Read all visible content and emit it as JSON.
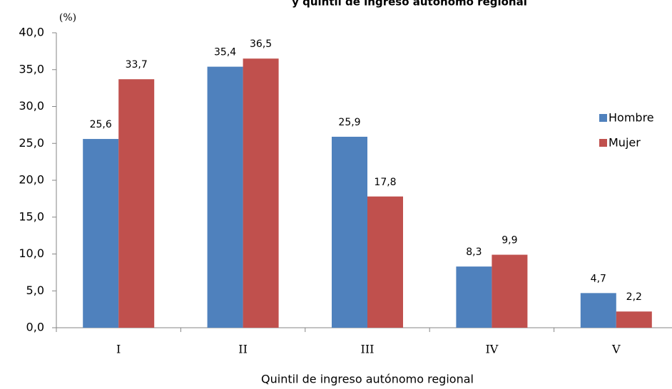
{
  "chart_data": {
    "type": "bar",
    "title": "y quintil de ingreso autónomo regional",
    "y_label": "(%)",
    "x_label": "Quintil de ingreso autónomo regional",
    "categories": [
      "I",
      "II",
      "III",
      "IV",
      "V"
    ],
    "series": [
      {
        "name": "Hombre",
        "color": "#4f81bd",
        "values": [
          25.6,
          35.4,
          25.9,
          8.3,
          4.7
        ],
        "value_labels": [
          "25,6",
          "35,4",
          "25,9",
          "8,3",
          "4,7"
        ]
      },
      {
        "name": "Mujer",
        "color": "#c0504d",
        "values": [
          33.7,
          36.5,
          17.8,
          9.9,
          2.2
        ],
        "value_labels": [
          "33,7",
          "36,5",
          "17,8",
          "9,9",
          "2,2"
        ]
      }
    ],
    "ylim": [
      0,
      40
    ],
    "yticks": [
      {
        "value": 0,
        "label": "0,0"
      },
      {
        "value": 5,
        "label": "5,0"
      },
      {
        "value": 10,
        "label": "10,0"
      },
      {
        "value": 15,
        "label": "15,0"
      },
      {
        "value": 20,
        "label": "20,0"
      },
      {
        "value": 25,
        "label": "25,0"
      },
      {
        "value": 30,
        "label": "30,0"
      },
      {
        "value": 35,
        "label": "35,0"
      },
      {
        "value": 40,
        "label": "40,0"
      }
    ],
    "legend": "right"
  }
}
